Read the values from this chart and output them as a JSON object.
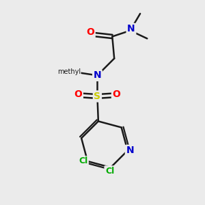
{
  "bg_color": "#ebebeb",
  "bond_color": "#1a1a1a",
  "bond_width": 1.8,
  "atom_colors": {
    "O": "#ff0000",
    "N": "#0000cc",
    "S": "#cccc00",
    "Cl": "#00aa00",
    "C": "#1a1a1a"
  },
  "font_size": 9,
  "fig_size": [
    3.0,
    3.0
  ],
  "dpi": 100,
  "xlim": [
    0,
    10
  ],
  "ylim": [
    0,
    10
  ]
}
